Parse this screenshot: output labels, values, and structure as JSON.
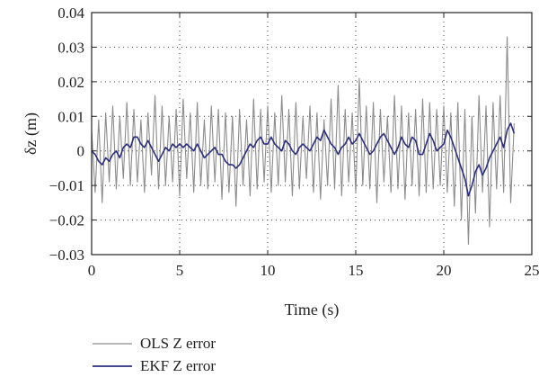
{
  "chart_data": {
    "type": "line",
    "title": "",
    "xlabel": "Time (s)",
    "ylabel": "δz (m)",
    "xlim": [
      0,
      25
    ],
    "ylim": [
      -0.03,
      0.04
    ],
    "xticks": [
      0,
      5,
      10,
      15,
      20,
      25
    ],
    "xtick_labels": [
      "0",
      "5",
      "10",
      "15",
      "20",
      "25"
    ],
    "yticks": [
      -0.03,
      -0.02,
      -0.01,
      0,
      0.01,
      0.02,
      0.03,
      0.04
    ],
    "ytick_labels": [
      "−0.03",
      "−0.02",
      "−0.01",
      "0",
      "0.01",
      "0.02",
      "0.03",
      "0.04"
    ],
    "grid": true,
    "legend_position": "bottom-left-outside",
    "series": [
      {
        "name": "OLS Z error",
        "color": "#8c8c8c",
        "x": [
          0.0,
          0.2,
          0.4,
          0.6,
          0.8,
          1.0,
          1.2,
          1.4,
          1.6,
          1.8,
          2.0,
          2.2,
          2.4,
          2.6,
          2.8,
          3.0,
          3.2,
          3.4,
          3.6,
          3.8,
          4.0,
          4.2,
          4.4,
          4.6,
          4.8,
          5.0,
          5.2,
          5.4,
          5.6,
          5.8,
          6.0,
          6.2,
          6.4,
          6.6,
          6.8,
          7.0,
          7.2,
          7.4,
          7.6,
          7.8,
          8.0,
          8.2,
          8.4,
          8.6,
          8.8,
          9.0,
          9.2,
          9.4,
          9.6,
          9.8,
          10.0,
          10.2,
          10.4,
          10.6,
          10.8,
          11.0,
          11.2,
          11.4,
          11.6,
          11.8,
          12.0,
          12.2,
          12.4,
          12.6,
          12.8,
          13.0,
          13.2,
          13.4,
          13.6,
          13.8,
          14.0,
          14.2,
          14.4,
          14.6,
          14.8,
          15.0,
          15.2,
          15.4,
          15.6,
          15.8,
          16.0,
          16.2,
          16.4,
          16.6,
          16.8,
          17.0,
          17.2,
          17.4,
          17.6,
          17.8,
          18.0,
          18.2,
          18.4,
          18.6,
          18.8,
          19.0,
          19.2,
          19.4,
          19.6,
          19.8,
          20.0,
          20.2,
          20.4,
          20.6,
          20.8,
          21.0,
          21.2,
          21.4,
          21.6,
          21.8,
          22.0,
          22.2,
          22.4,
          22.6,
          22.8,
          23.0,
          23.2,
          23.4,
          23.6,
          23.8,
          24.0
        ],
        "y": [
          0.006,
          -0.012,
          0.009,
          -0.015,
          0.011,
          -0.009,
          0.013,
          -0.011,
          0.01,
          -0.008,
          0.014,
          -0.01,
          0.012,
          -0.009,
          0.009,
          -0.012,
          0.011,
          -0.007,
          0.016,
          -0.011,
          0.013,
          -0.01,
          0.01,
          -0.009,
          0.012,
          -0.013,
          0.015,
          -0.008,
          0.011,
          -0.012,
          0.014,
          -0.01,
          0.009,
          -0.011,
          0.013,
          -0.009,
          0.012,
          -0.014,
          0.011,
          -0.012,
          0.01,
          -0.016,
          0.012,
          -0.01,
          0.009,
          -0.013,
          0.015,
          -0.011,
          0.012,
          -0.009,
          0.013,
          -0.012,
          0.011,
          -0.01,
          0.016,
          -0.009,
          0.012,
          -0.013,
          0.014,
          -0.011,
          0.01,
          -0.008,
          0.013,
          -0.012,
          0.011,
          -0.014,
          0.009,
          -0.01,
          0.015,
          -0.011,
          0.019,
          -0.013,
          0.012,
          -0.009,
          0.011,
          -0.012,
          0.021,
          -0.01,
          0.013,
          -0.011,
          0.014,
          -0.015,
          0.012,
          -0.009,
          0.01,
          -0.012,
          0.016,
          -0.011,
          0.013,
          -0.014,
          0.011,
          -0.01,
          0.012,
          -0.013,
          0.015,
          -0.012,
          0.014,
          -0.011,
          0.012,
          -0.01,
          0.013,
          -0.012,
          0.011,
          -0.016,
          0.014,
          -0.02,
          0.012,
          -0.027,
          0.01,
          -0.018,
          0.016,
          -0.012,
          0.013,
          -0.022,
          0.014,
          -0.011,
          0.016,
          -0.012,
          0.033,
          -0.015,
          0.008
        ]
      },
      {
        "name": "EKF Z error",
        "color": "#2b2f7e",
        "x": [
          0.0,
          0.2,
          0.4,
          0.6,
          0.8,
          1.0,
          1.2,
          1.4,
          1.6,
          1.8,
          2.0,
          2.2,
          2.4,
          2.6,
          2.8,
          3.0,
          3.2,
          3.4,
          3.6,
          3.8,
          4.0,
          4.2,
          4.4,
          4.6,
          4.8,
          5.0,
          5.2,
          5.4,
          5.6,
          5.8,
          6.0,
          6.2,
          6.4,
          6.6,
          6.8,
          7.0,
          7.2,
          7.4,
          7.6,
          7.8,
          8.0,
          8.2,
          8.4,
          8.6,
          8.8,
          9.0,
          9.2,
          9.4,
          9.6,
          9.8,
          10.0,
          10.2,
          10.4,
          10.6,
          10.8,
          11.0,
          11.2,
          11.4,
          11.6,
          11.8,
          12.0,
          12.2,
          12.4,
          12.6,
          12.8,
          13.0,
          13.2,
          13.4,
          13.6,
          13.8,
          14.0,
          14.2,
          14.4,
          14.6,
          14.8,
          15.0,
          15.2,
          15.4,
          15.6,
          15.8,
          16.0,
          16.2,
          16.4,
          16.6,
          16.8,
          17.0,
          17.2,
          17.4,
          17.6,
          17.8,
          18.0,
          18.2,
          18.4,
          18.6,
          18.8,
          19.0,
          19.2,
          19.4,
          19.6,
          19.8,
          20.0,
          20.2,
          20.4,
          20.6,
          20.8,
          21.0,
          21.2,
          21.4,
          21.6,
          21.8,
          22.0,
          22.2,
          22.4,
          22.6,
          22.8,
          23.0,
          23.2,
          23.4,
          23.6,
          23.8,
          24.0
        ],
        "y": [
          0.0,
          -0.001,
          -0.003,
          -0.004,
          -0.002,
          -0.003,
          -0.001,
          0.0,
          -0.002,
          0.001,
          0.002,
          0.001,
          0.004,
          0.004,
          0.002,
          0.001,
          0.003,
          0.001,
          -0.001,
          -0.003,
          -0.001,
          0.001,
          0.0,
          0.002,
          0.001,
          0.002,
          0.001,
          0.002,
          0.001,
          0.0,
          0.002,
          0.0,
          -0.002,
          -0.001,
          0.0,
          0.001,
          -0.001,
          -0.001,
          -0.003,
          -0.004,
          -0.004,
          -0.005,
          -0.004,
          -0.002,
          0.0,
          0.002,
          0.001,
          0.003,
          0.004,
          0.002,
          0.002,
          0.004,
          0.002,
          0.001,
          0.0,
          0.003,
          0.002,
          0.0,
          -0.001,
          0.001,
          0.002,
          0.001,
          0.0,
          0.002,
          0.004,
          0.003,
          0.006,
          0.004,
          0.002,
          0.001,
          -0.001,
          0.001,
          0.002,
          0.004,
          0.002,
          0.003,
          0.005,
          0.003,
          0.001,
          -0.001,
          0.0,
          0.002,
          0.004,
          0.005,
          0.003,
          0.001,
          -0.001,
          0.001,
          0.004,
          0.002,
          0.001,
          0.004,
          0.003,
          -0.001,
          -0.001,
          0.002,
          0.005,
          0.003,
          0.0,
          0.001,
          0.002,
          0.006,
          0.004,
          0.001,
          -0.002,
          -0.005,
          -0.008,
          -0.013,
          -0.01,
          -0.006,
          -0.004,
          -0.007,
          -0.005,
          -0.002,
          0.0,
          0.002,
          0.004,
          0.001,
          0.006,
          0.008,
          0.005
        ]
      }
    ]
  }
}
